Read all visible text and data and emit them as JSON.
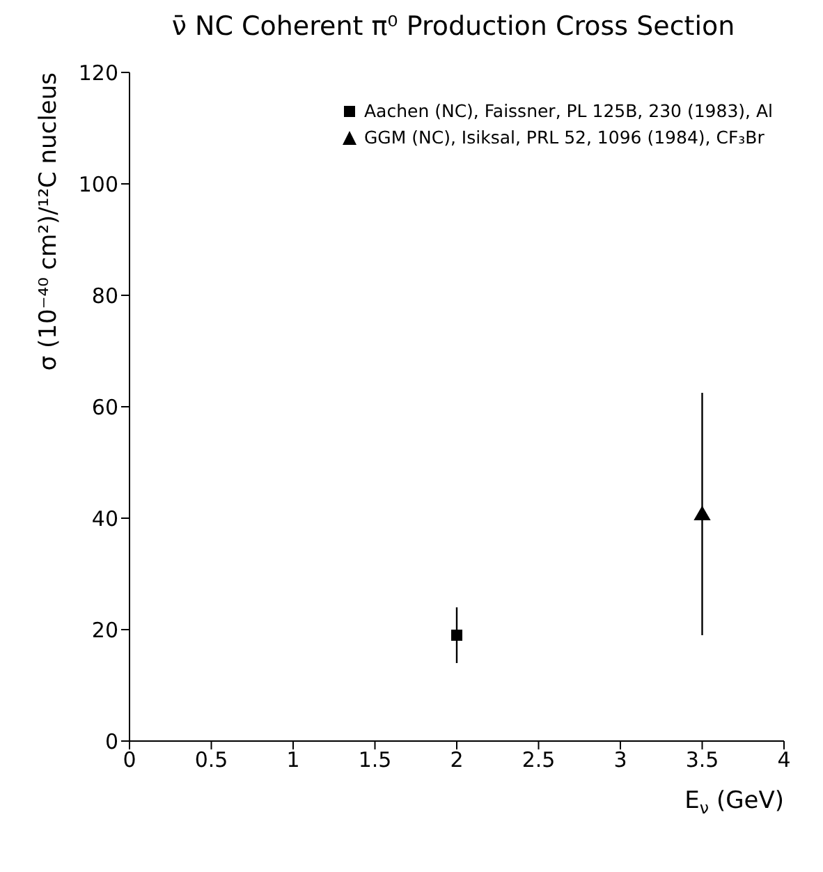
{
  "chart_data": {
    "type": "scatter",
    "title": "ν̄ NC Coherent π⁰ Production Cross Section",
    "xlabel": "E$_{ν}$ (GeV)",
    "ylabel": "σ (10⁻⁴⁰ cm²)/¹²C nucleus",
    "xlim": [
      0,
      4
    ],
    "xticks": [
      0,
      0.5,
      1,
      1.5,
      2,
      2.5,
      3,
      3.5,
      4
    ],
    "ylim": [
      0,
      120
    ],
    "yticks": [
      0,
      20,
      40,
      60,
      80,
      100,
      120
    ],
    "grid": false,
    "legend": "top right",
    "series": [
      {
        "name": "Aachen (NC), Faissner, PL 125B, 230 (1983), Al",
        "color": "#000000",
        "marker": "square",
        "x": [
          2
        ],
        "values": [
          19
        ],
        "errors": [
          [
            14,
            24
          ]
        ]
      },
      {
        "name": "GGM (NC), Isiksal, PRL 52, 1096 (1984), CF₃Br",
        "color": "#000000",
        "marker": "triangle",
        "x": [
          3.5
        ],
        "values": [
          40.5
        ],
        "errors": [
          [
            19,
            62.5
          ]
        ]
      }
    ]
  }
}
